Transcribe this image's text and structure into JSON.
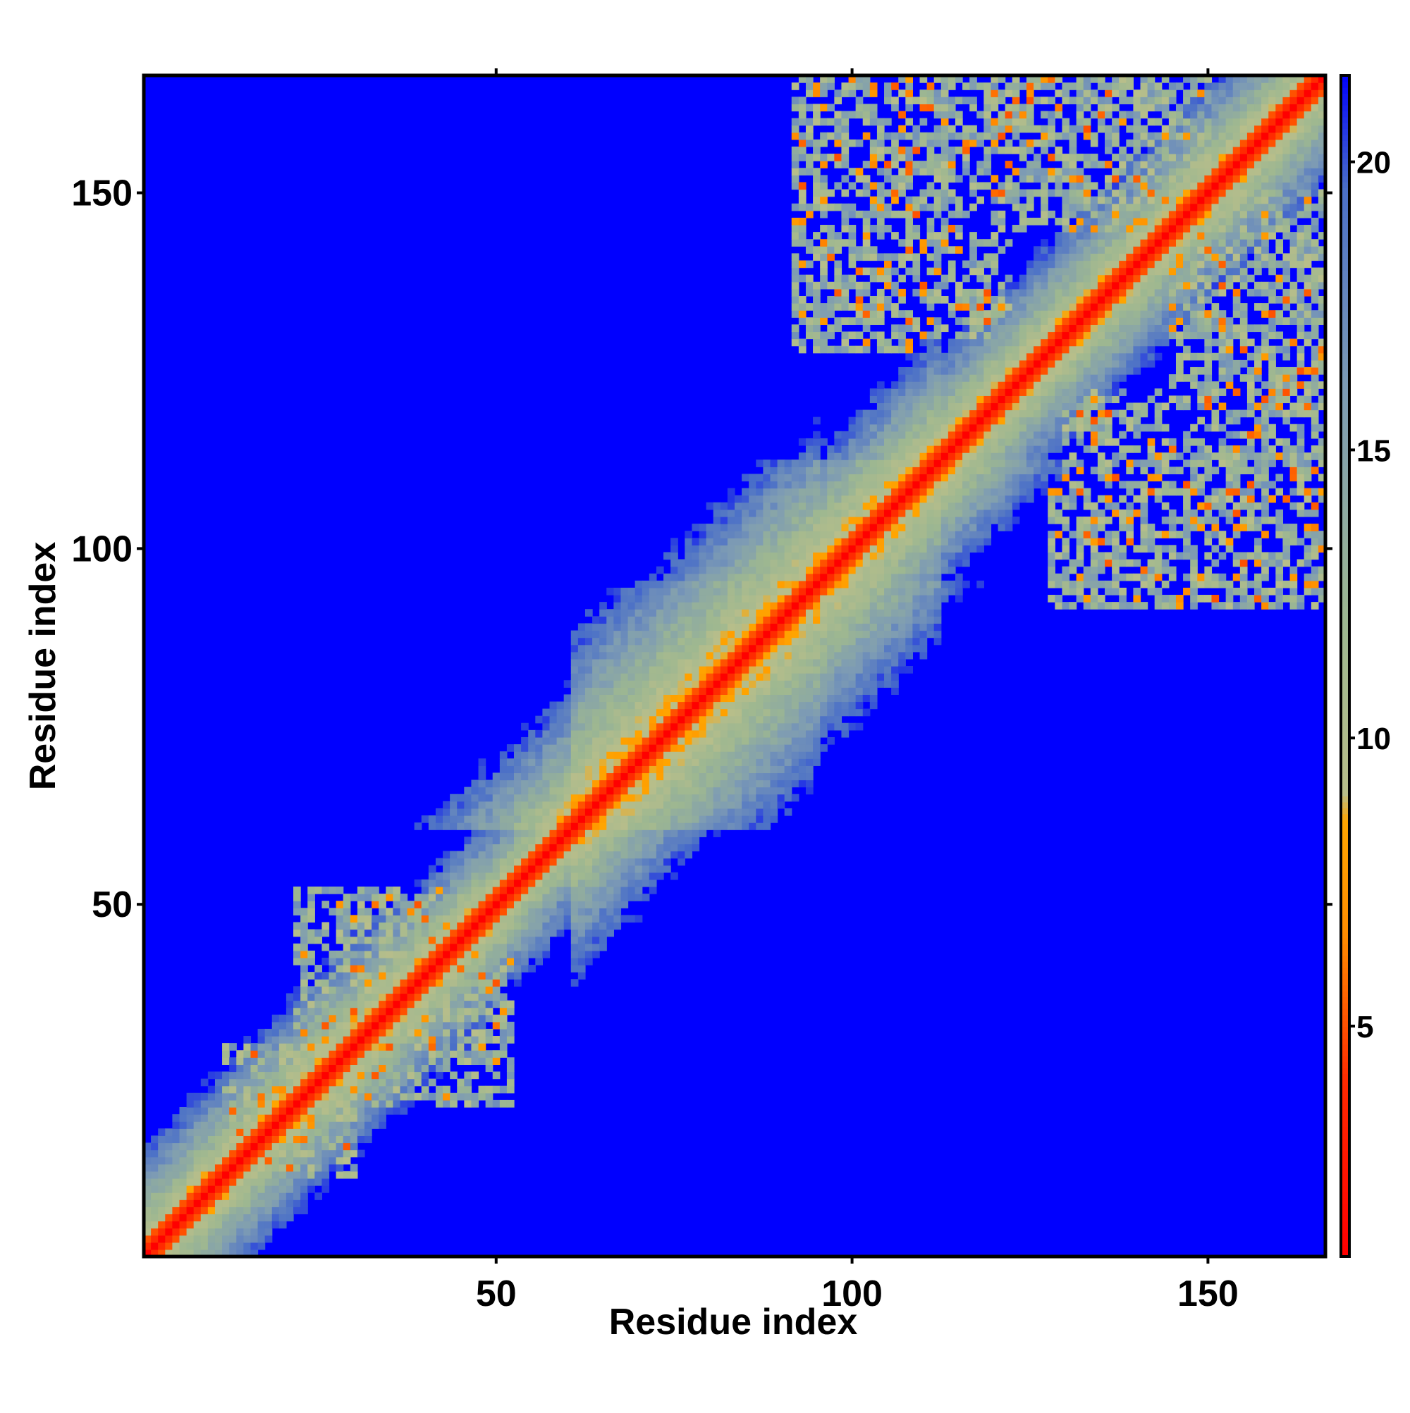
{
  "chart_data": {
    "type": "heatmap",
    "title": "",
    "xlabel": "Residue index",
    "ylabel": "Residue index",
    "n_residues": 166,
    "xlim": [
      1,
      166
    ],
    "ylim": [
      1,
      166
    ],
    "x_ticks": [
      50,
      100,
      150
    ],
    "y_ticks": [
      50,
      100,
      150
    ],
    "colorbar": {
      "range": [
        1,
        21.5
      ],
      "ticks": [
        5,
        10,
        15,
        20
      ],
      "colors": [
        {
          "value": 1,
          "color": "#ff0000"
        },
        {
          "value": 4,
          "color": "#ff2a00"
        },
        {
          "value": 6.5,
          "color": "#ff8c00"
        },
        {
          "value": 8.5,
          "color": "#ffa500"
        },
        {
          "value": 9,
          "color": "#b8be8a"
        },
        {
          "value": 12,
          "color": "#9db791"
        },
        {
          "value": 16,
          "color": "#7d9bb4"
        },
        {
          "value": 19.5,
          "color": "#4a6fc8"
        },
        {
          "value": 21.5,
          "color": "#0000ff"
        }
      ]
    },
    "description_bands": [
      {
        "from": 1,
        "to": 48,
        "width_pairs": 10
      },
      {
        "from": 48,
        "to": 60,
        "width_pairs": 8
      },
      {
        "from": 60,
        "to": 95,
        "width_pairs": 18
      },
      {
        "from": 95,
        "to": 112,
        "width_pairs": 14
      },
      {
        "from": 112,
        "to": 166,
        "width_pairs": 10
      }
    ],
    "contact_clusters": [
      {
        "i_range": [
          92,
          108
        ],
        "j_range": [
          128,
          166
        ],
        "density": 0.55
      },
      {
        "i_range": [
          124,
          150
        ],
        "j_range": [
          145,
          166
        ],
        "density": 0.6
      },
      {
        "i_range": [
          130,
          166
        ],
        "j_range": [
          102,
          122
        ],
        "density": 0.5
      },
      {
        "i_range": [
          145,
          166
        ],
        "j_range": [
          120,
          140
        ],
        "density": 0.6
      },
      {
        "i_range": [
          22,
          45
        ],
        "j_range": [
          30,
          52
        ],
        "density": 0.55
      },
      {
        "i_range": [
          12,
          25
        ],
        "j_range": [
          14,
          30
        ],
        "density": 0.5
      }
    ]
  }
}
